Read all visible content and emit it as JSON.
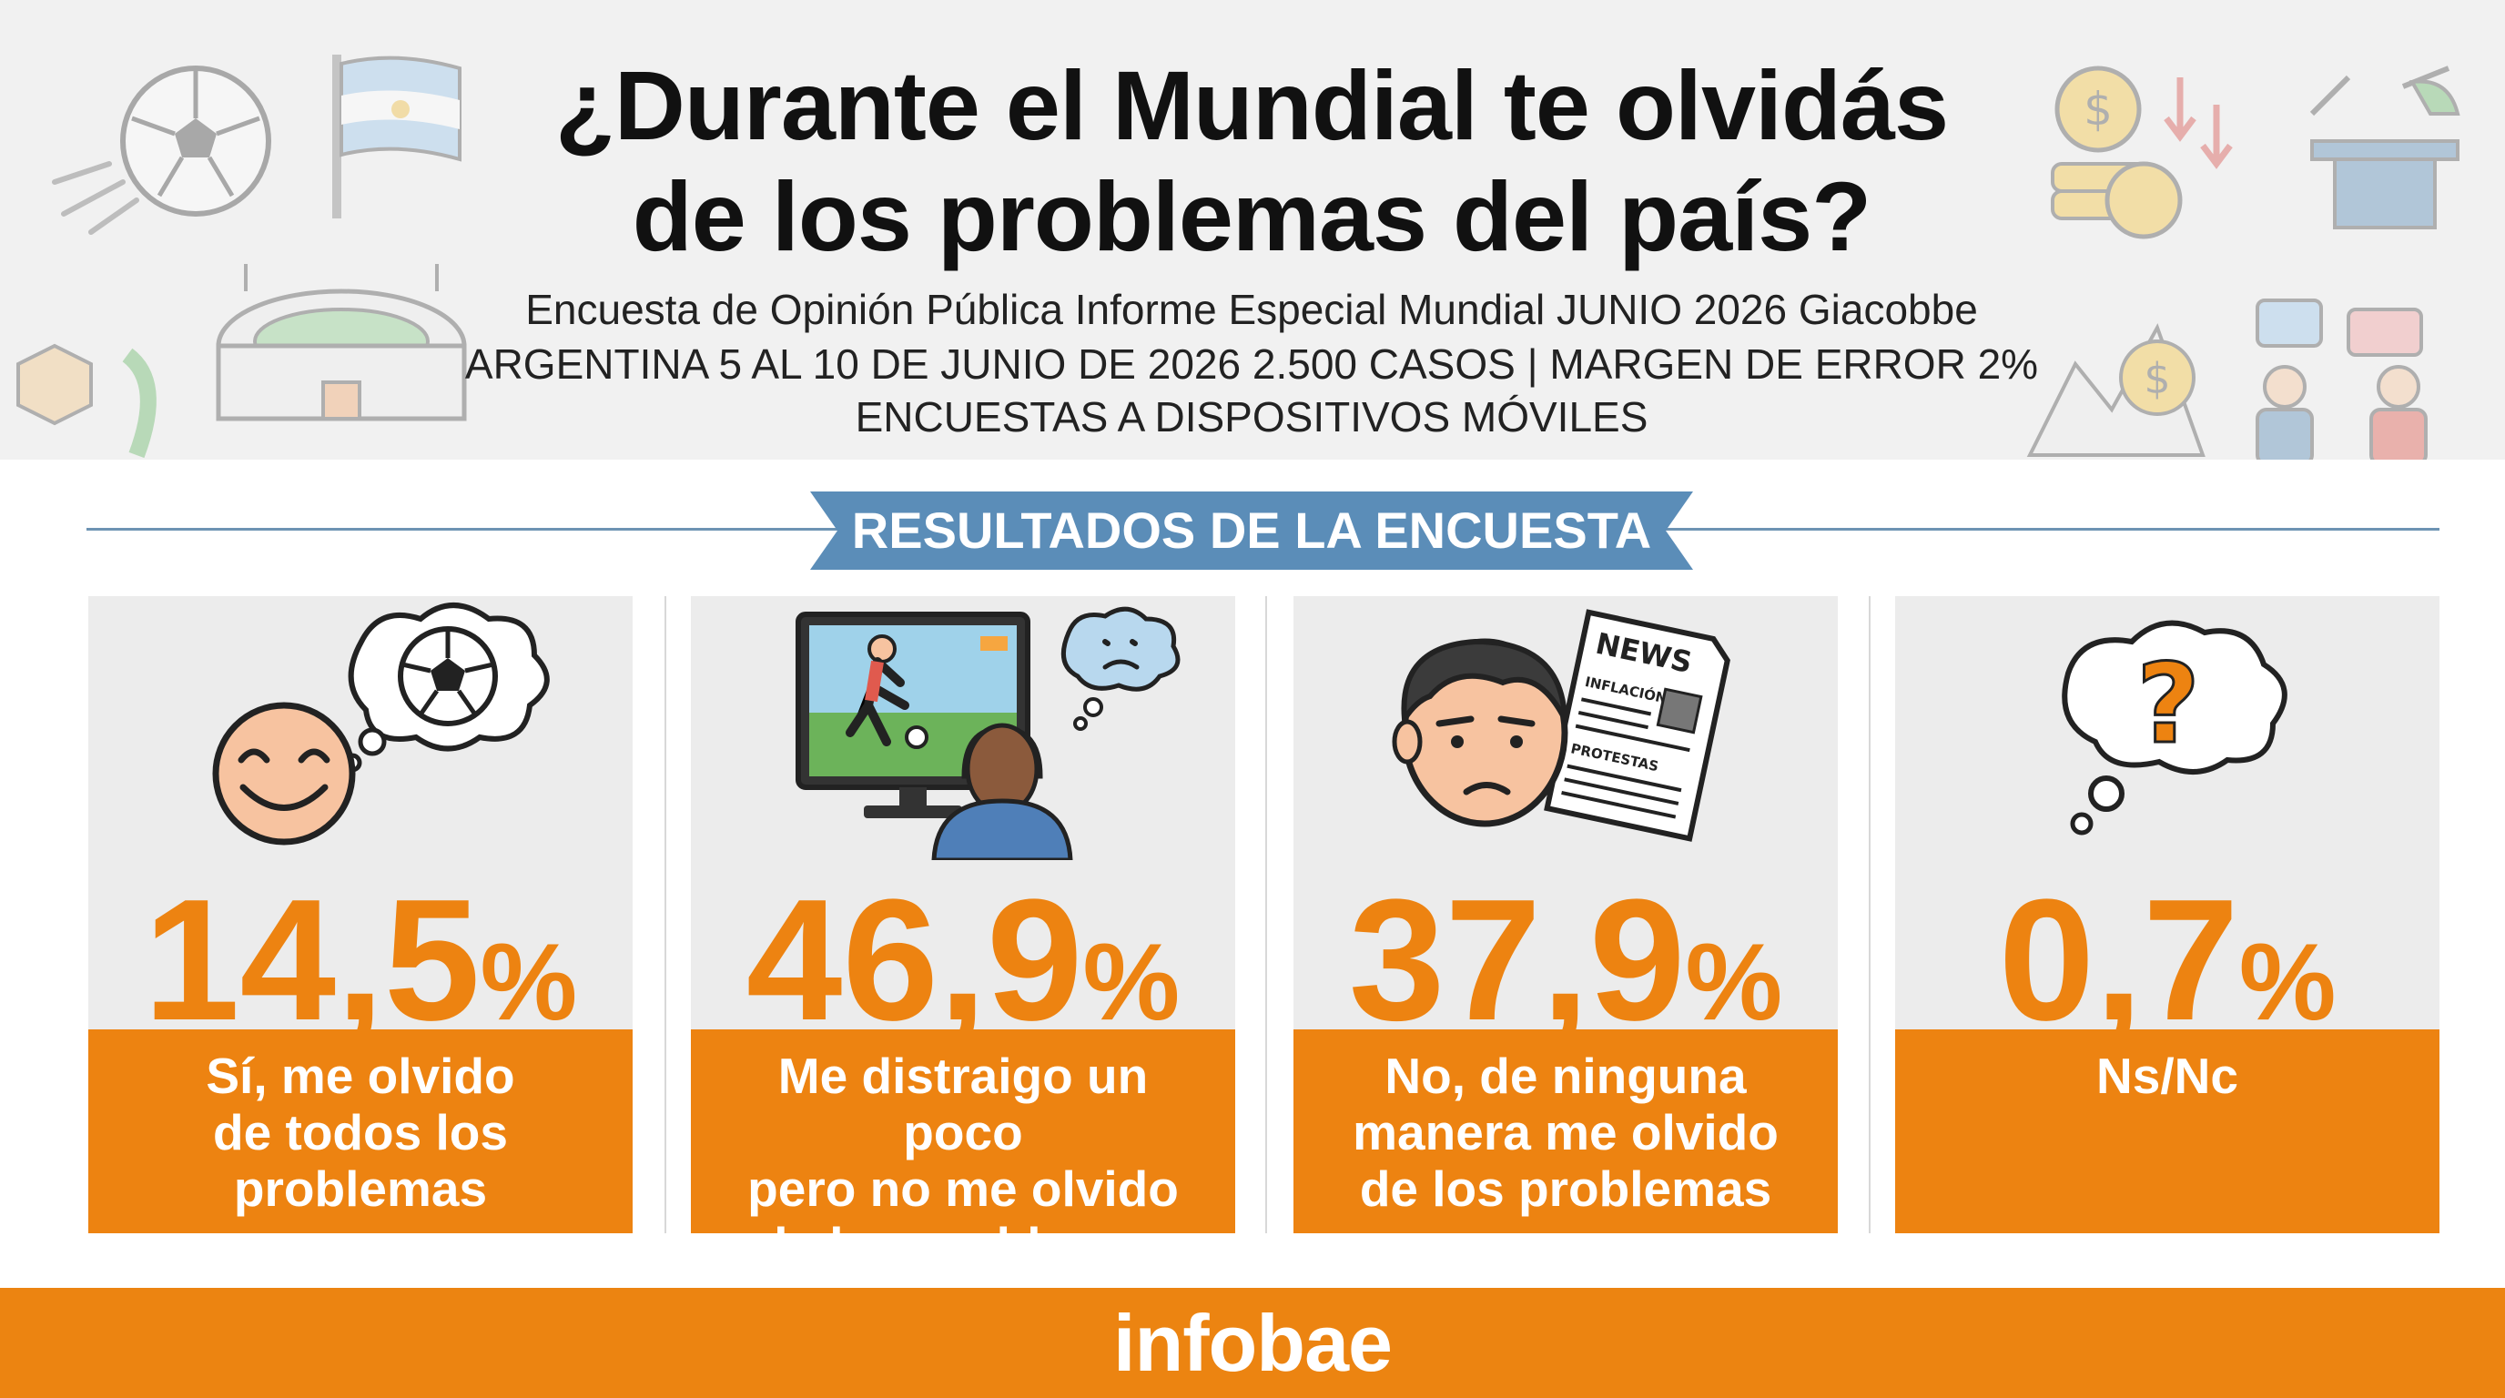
{
  "header": {
    "title_line1": "¿Durante el Mundial te olvidás",
    "title_line2": "de los problemas del país?",
    "subtitle_line1": "Encuesta de Opinión Pública Informe Especial Mundial JUNIO 2026 Giacobbe",
    "subtitle_line2": "ARGENTINA 5 AL 10 DE JUNIO DE 2026 2.500 CASOS | MARGEN DE ERROR 2%",
    "subtitle_line3": "ENCUESTAS A DISPOSITIVOS MÓVILES"
  },
  "section_banner": "RESULTADOS DE LA ENCUESTA",
  "icons": {
    "decor": [
      "soccer-ball-icon",
      "argentina-flag-icon",
      "stadium-icon",
      "coins-down-icon",
      "magic-hat-icon",
      "debate-people-icon"
    ],
    "cards": [
      "happy-face-soccer-thought-icon",
      "tv-viewer-worried-icon",
      "serious-face-newspaper-icon",
      "question-thought-icon"
    ]
  },
  "colors": {
    "accent": "#ed8311",
    "banner": "#5b8db8",
    "card_bg": "#ececec",
    "header_bg": "#f1f1f1"
  },
  "icon_text": {
    "newspaper_title": "NEWS",
    "newspaper_line1": "INFLACIÓN",
    "newspaper_line2": "PROTESTAS"
  },
  "chart_data": {
    "type": "bar",
    "title": "¿Durante el Mundial te olvidás de los problemas del país?",
    "categories": [
      "Sí, me olvido de todos los problemas",
      "Me distraigo un poco pero no me olvido de los problemas",
      "No, de ninguna manera me olvido de los problemas",
      "Ns/Nc"
    ],
    "values": [
      14.5,
      46.9,
      37.9,
      0.7
    ],
    "unit": "%",
    "value_labels": [
      "14,5",
      "46,9",
      "37,9",
      "0,7"
    ],
    "label_lines": [
      [
        "Sí, me olvido",
        "de todos los",
        "problemas"
      ],
      [
        "Me distraigo un poco",
        "pero no me olvido",
        "de los problemas"
      ],
      [
        "No, de ninguna",
        "manera me olvido",
        "de los problemas"
      ],
      [
        "Ns/Nc"
      ]
    ]
  },
  "footer": {
    "brand": "infobae"
  }
}
